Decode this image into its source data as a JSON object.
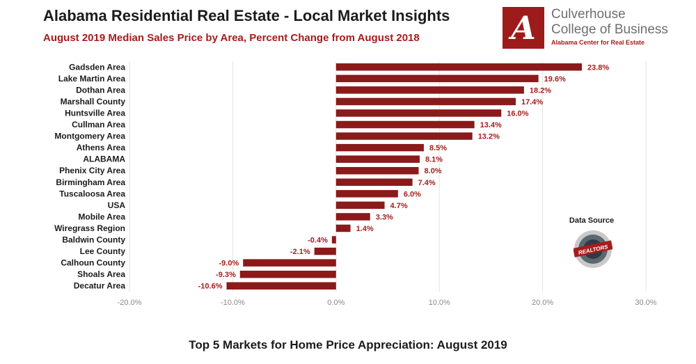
{
  "header": {
    "title": "Alabama Residential Real Estate - Local Market Insights",
    "subtitle": "August 2019 Median Sales Price by Area, Percent Change from August 2018"
  },
  "logo": {
    "letter": "A",
    "line1": "Culverhouse",
    "line2": "College of Business",
    "line3": "Alabama Center for Real Estate"
  },
  "source": {
    "label": "Data Source",
    "seal_text": "REALTORS"
  },
  "footer": {
    "caption": "Top 5 Markets for Home Price Appreciation: August 2019"
  },
  "colors": {
    "bar": "#8b1a1a",
    "accent": "#a61c1c",
    "grid": "#e3e3e3"
  },
  "chart_data": {
    "type": "bar",
    "orientation": "horizontal",
    "categories": [
      "Gadsden Area",
      "Lake Martin Area",
      "Dothan Area",
      "Marshall County",
      "Huntsville Area",
      "Cullman Area",
      "Montgomery Area",
      "Athens Area",
      "ALABAMA",
      "Phenix City Area",
      "Birmingham Area",
      "Tuscaloosa Area",
      "USA",
      "Mobile Area",
      "Wiregrass Region",
      "Baldwin County",
      "Lee County",
      "Calhoun County",
      "Shoals Area",
      "Decatur Area"
    ],
    "values": [
      23.8,
      19.6,
      18.2,
      17.4,
      16.0,
      13.4,
      13.2,
      8.5,
      8.1,
      8.0,
      7.4,
      6.0,
      4.7,
      3.3,
      1.4,
      -0.4,
      -2.1,
      -9.0,
      -9.3,
      -10.6
    ],
    "value_labels": [
      "23.8%",
      "19.6%",
      "18.2%",
      "17.4%",
      "16.0%",
      "13.4%",
      "13.2%",
      "8.5%",
      "8.1%",
      "8.0%",
      "7.4%",
      "6.0%",
      "4.7%",
      "3.3%",
      "1.4%",
      "-0.4%",
      "-2.1%",
      "-9.0%",
      "-9.3%",
      "-10.6%"
    ],
    "xlim": [
      -20,
      30
    ],
    "xticks": [
      -20,
      -10,
      0,
      10,
      20,
      30
    ],
    "xtick_labels": [
      "-20.0%",
      "-10.0%",
      "0.0%",
      "10.0%",
      "20.0%",
      "30.0%"
    ],
    "grid": "vertical",
    "legend": "none",
    "title": "Alabama Residential Real Estate - Local Market Insights",
    "xlabel": "",
    "ylabel": ""
  }
}
